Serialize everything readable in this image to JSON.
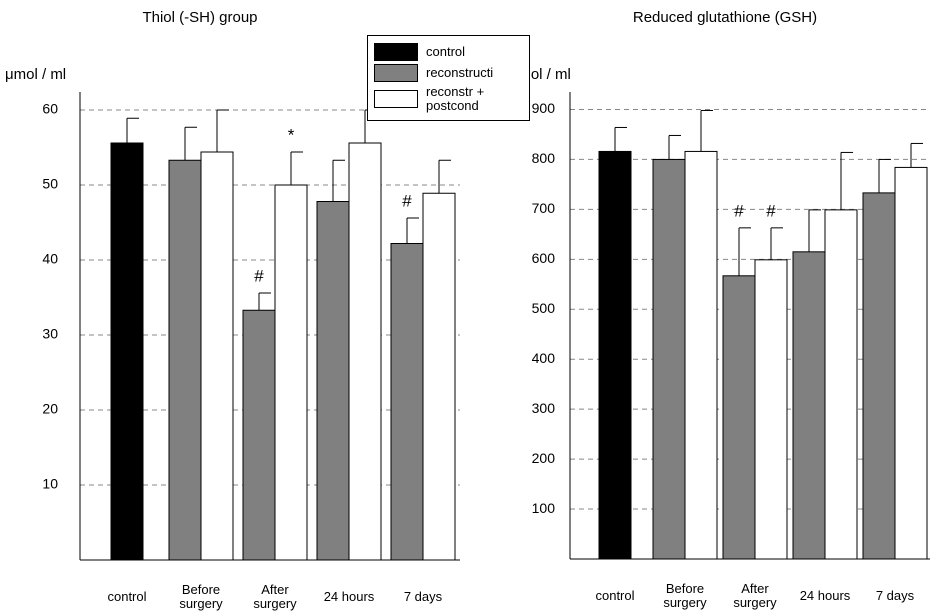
{
  "chart_data": [
    {
      "type": "bar",
      "title": "Thiol (-SH) group",
      "ylabel": "μmol / ml",
      "categories": [
        "control",
        "Before surgery",
        "After surgery",
        "24 hours",
        "7 days"
      ],
      "series": [
        {
          "name": "control",
          "color": "#000000",
          "values": [
            55.6,
            null,
            null,
            null,
            null
          ],
          "errors": [
            3.3,
            null,
            null,
            null,
            null
          ],
          "annotations": [
            null,
            null,
            null,
            null,
            null
          ]
        },
        {
          "name": "reconstructi",
          "color": "#808080",
          "values": [
            null,
            53.3,
            33.3,
            47.8,
            42.2
          ],
          "errors": [
            null,
            4.4,
            2.3,
            5.5,
            3.4
          ],
          "annotations": [
            null,
            null,
            "#",
            null,
            "#"
          ]
        },
        {
          "name": "reconstr + postcond",
          "color": "#ffffff",
          "values": [
            null,
            54.4,
            50,
            55.6,
            48.9
          ],
          "errors": [
            null,
            5.6,
            4.4,
            4.4,
            4.4
          ],
          "annotations": [
            null,
            null,
            "*",
            null,
            null
          ]
        }
      ],
      "ylim": [
        0,
        62.4
      ],
      "yticks": [
        10,
        20,
        30,
        40,
        50,
        60
      ],
      "grid": true,
      "legend": "upper right"
    },
    {
      "type": "bar",
      "title": "Reduced glutathione (GSH)",
      "ylabel": "nmol / ml",
      "categories": [
        "control",
        "Before surgery",
        "After surgery",
        "24 hours",
        "7 days"
      ],
      "series": [
        {
          "color": "#000000",
          "values": [
            816,
            null,
            null,
            null,
            null
          ],
          "errors": [
            48,
            null,
            null,
            null,
            null
          ],
          "annotations": [
            null,
            null,
            null,
            null,
            null
          ]
        },
        {
          "color": "#808080",
          "values": [
            null,
            800,
            567,
            615,
            733
          ],
          "errors": [
            null,
            48,
            96,
            84,
            67
          ],
          "annotations": [
            null,
            null,
            "#",
            null,
            null
          ]
        },
        {
          "color": "#ffffff",
          "values": [
            null,
            816,
            599,
            699,
            784
          ],
          "errors": [
            null,
            82,
            64,
            115,
            48
          ],
          "annotations": [
            null,
            null,
            "#",
            null,
            null
          ]
        }
      ],
      "ylim": [
        0,
        935
      ],
      "yticks": [
        100,
        200,
        300,
        400,
        500,
        600,
        700,
        800,
        900
      ],
      "grid": true,
      "legend": "none"
    }
  ]
}
